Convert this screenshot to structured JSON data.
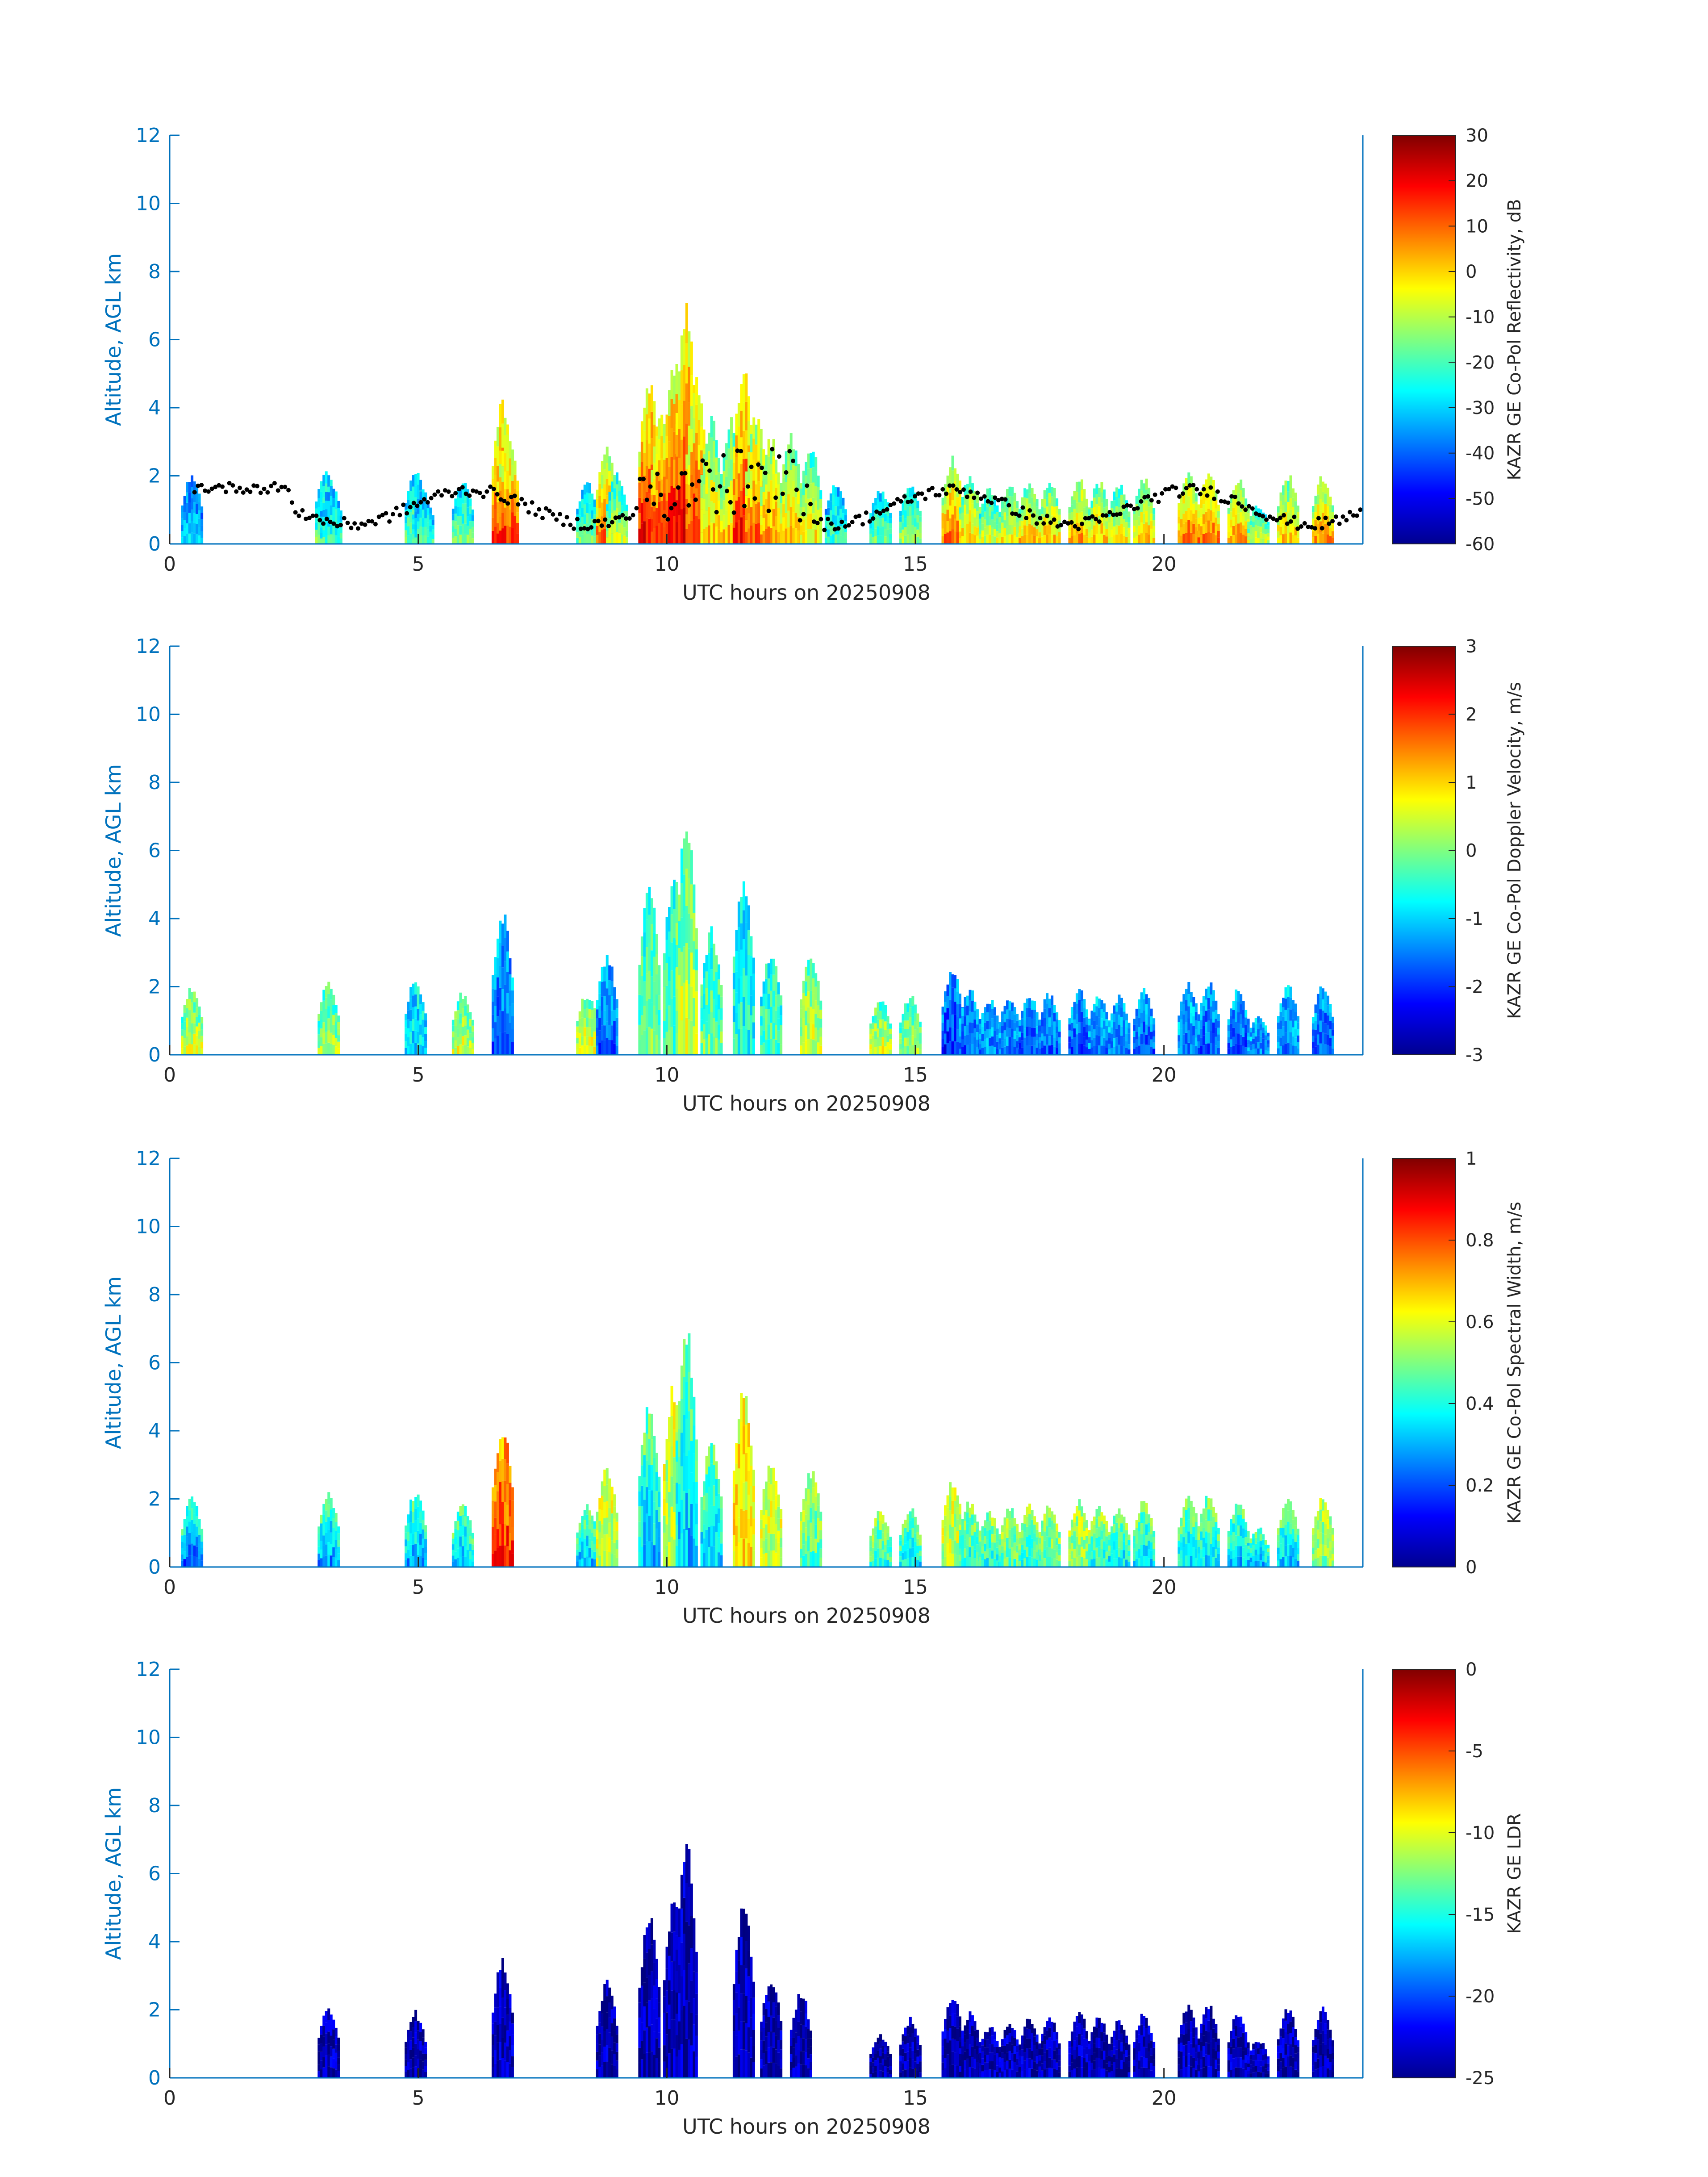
{
  "figure": {
    "date": "20250908"
  },
  "chart_data": [
    {
      "type": "heatmap",
      "title": "",
      "xlabel": "UTC hours on 20250908",
      "ylabel": "Altitude, AGL km",
      "xlim": [
        0,
        24
      ],
      "ylim": [
        0,
        12
      ],
      "xticks": [
        0,
        5,
        10,
        15,
        20
      ],
      "yticks": [
        0,
        2,
        4,
        6,
        8,
        10,
        12
      ],
      "colorbar": {
        "label": "KAZR GE Co-Pol Reflectivity, dB",
        "range": [
          -60,
          30
        ],
        "ticks": [
          30,
          20,
          10,
          0,
          -10,
          -20,
          -30,
          -40,
          -50,
          -60
        ],
        "colormap": "jet"
      },
      "bias": 0.72,
      "overlay": {
        "type": "scatter",
        "color": "#000000",
        "description_values": "cloud base height, km"
      },
      "columns": [
        {
          "t": 0.45,
          "top": 2.1,
          "v": 0.35
        },
        {
          "t": 3.15,
          "top": 2.3,
          "v": 0.5
        },
        {
          "t": 3.25,
          "top": 1.8,
          "v": 0.45
        },
        {
          "t": 4.95,
          "top": 2.3,
          "v": 0.5
        },
        {
          "t": 5.1,
          "top": 1.6,
          "v": 0.45
        },
        {
          "t": 5.9,
          "top": 1.9,
          "v": 0.5
        },
        {
          "t": 6.7,
          "top": 4.3,
          "v": 0.9
        },
        {
          "t": 6.8,
          "top": 3.5,
          "v": 0.85
        },
        {
          "t": 8.4,
          "top": 1.9,
          "v": 0.5
        },
        {
          "t": 8.8,
          "top": 3.0,
          "v": 0.8
        },
        {
          "t": 9.0,
          "top": 2.2,
          "v": 0.6
        },
        {
          "t": 9.65,
          "top": 5.0,
          "v": 0.9
        },
        {
          "t": 9.9,
          "top": 4.0,
          "v": 0.85
        },
        {
          "t": 10.15,
          "top": 5.6,
          "v": 0.9
        },
        {
          "t": 10.4,
          "top": 7.1,
          "v": 0.92
        },
        {
          "t": 10.6,
          "top": 5.0,
          "v": 0.85
        },
        {
          "t": 10.9,
          "top": 3.8,
          "v": 0.7
        },
        {
          "t": 11.3,
          "top": 3.8,
          "v": 0.7
        },
        {
          "t": 11.55,
          "top": 5.3,
          "v": 0.88
        },
        {
          "t": 11.8,
          "top": 4.0,
          "v": 0.8
        },
        {
          "t": 12.1,
          "top": 3.2,
          "v": 0.75
        },
        {
          "t": 12.5,
          "top": 3.3,
          "v": 0.7
        },
        {
          "t": 12.9,
          "top": 3.0,
          "v": 0.65
        },
        {
          "t": 13.4,
          "top": 1.9,
          "v": 0.45
        },
        {
          "t": 14.3,
          "top": 1.7,
          "v": 0.5
        },
        {
          "t": 14.9,
          "top": 1.8,
          "v": 0.55
        },
        {
          "t": 15.75,
          "top": 2.6,
          "v": 0.8
        },
        {
          "t": 16.1,
          "top": 2.0,
          "v": 0.7
        },
        {
          "t": 16.5,
          "top": 1.7,
          "v": 0.6
        },
        {
          "t": 16.9,
          "top": 1.8,
          "v": 0.65
        },
        {
          "t": 17.3,
          "top": 1.9,
          "v": 0.7
        },
        {
          "t": 17.7,
          "top": 1.9,
          "v": 0.7
        },
        {
          "t": 18.3,
          "top": 2.0,
          "v": 0.75
        },
        {
          "t": 18.7,
          "top": 1.9,
          "v": 0.7
        },
        {
          "t": 19.1,
          "top": 1.8,
          "v": 0.65
        },
        {
          "t": 19.6,
          "top": 2.0,
          "v": 0.7
        },
        {
          "t": 20.5,
          "top": 2.2,
          "v": 0.8
        },
        {
          "t": 20.9,
          "top": 2.2,
          "v": 0.8
        },
        {
          "t": 21.5,
          "top": 2.0,
          "v": 0.75
        },
        {
          "t": 21.9,
          "top": 1.2,
          "v": 0.6
        },
        {
          "t": 22.5,
          "top": 2.1,
          "v": 0.7
        },
        {
          "t": 23.2,
          "top": 2.1,
          "v": 0.75
        }
      ]
    },
    {
      "type": "heatmap",
      "title": "",
      "xlabel": "UTC hours on 20250908",
      "ylabel": "Altitude, AGL km",
      "xlim": [
        0,
        24
      ],
      "ylim": [
        0,
        12
      ],
      "xticks": [
        0,
        5,
        10,
        15,
        20
      ],
      "yticks": [
        0,
        2,
        4,
        6,
        8,
        10,
        12
      ],
      "colorbar": {
        "label": "KAZR GE Co-Pol Doppler Velocity, m/s",
        "range": [
          -3,
          3
        ],
        "ticks": [
          3,
          2,
          1,
          0,
          -1,
          -2,
          -3
        ],
        "colormap": "jet"
      },
      "bias": 0.35,
      "columns": [
        {
          "t": 0.45,
          "top": 2.1,
          "v": 0.6
        },
        {
          "t": 3.2,
          "top": 2.2,
          "v": 0.55
        },
        {
          "t": 4.95,
          "top": 2.3,
          "v": 0.35
        },
        {
          "t": 5.9,
          "top": 1.9,
          "v": 0.6
        },
        {
          "t": 6.7,
          "top": 4.3,
          "v": 0.2
        },
        {
          "t": 8.4,
          "top": 1.9,
          "v": 0.65
        },
        {
          "t": 8.8,
          "top": 3.0,
          "v": 0.2
        },
        {
          "t": 9.65,
          "top": 5.0,
          "v": 0.5
        },
        {
          "t": 10.15,
          "top": 5.6,
          "v": 0.45
        },
        {
          "t": 10.4,
          "top": 7.1,
          "v": 0.6
        },
        {
          "t": 10.9,
          "top": 3.8,
          "v": 0.5
        },
        {
          "t": 11.55,
          "top": 5.3,
          "v": 0.4
        },
        {
          "t": 12.1,
          "top": 3.2,
          "v": 0.45
        },
        {
          "t": 12.9,
          "top": 3.0,
          "v": 0.6
        },
        {
          "t": 14.3,
          "top": 1.7,
          "v": 0.6
        },
        {
          "t": 14.9,
          "top": 1.8,
          "v": 0.55
        },
        {
          "t": 15.75,
          "top": 2.6,
          "v": 0.15
        },
        {
          "t": 16.1,
          "top": 2.0,
          "v": 0.2
        },
        {
          "t": 16.5,
          "top": 1.7,
          "v": 0.25
        },
        {
          "t": 16.9,
          "top": 1.8,
          "v": 0.25
        },
        {
          "t": 17.3,
          "top": 1.9,
          "v": 0.2
        },
        {
          "t": 17.7,
          "top": 1.9,
          "v": 0.2
        },
        {
          "t": 18.3,
          "top": 2.0,
          "v": 0.2
        },
        {
          "t": 18.7,
          "top": 1.9,
          "v": 0.25
        },
        {
          "t": 19.1,
          "top": 1.8,
          "v": 0.25
        },
        {
          "t": 19.6,
          "top": 2.0,
          "v": 0.2
        },
        {
          "t": 20.5,
          "top": 2.2,
          "v": 0.25
        },
        {
          "t": 20.9,
          "top": 2.2,
          "v": 0.2
        },
        {
          "t": 21.5,
          "top": 2.0,
          "v": 0.2
        },
        {
          "t": 21.9,
          "top": 1.2,
          "v": 0.25
        },
        {
          "t": 22.5,
          "top": 2.1,
          "v": 0.25
        },
        {
          "t": 23.2,
          "top": 2.1,
          "v": 0.2
        }
      ]
    },
    {
      "type": "heatmap",
      "title": "",
      "xlabel": "UTC hours on 20250908",
      "ylabel": "Altitude, AGL km",
      "xlim": [
        0,
        24
      ],
      "ylim": [
        0,
        12
      ],
      "xticks": [
        0,
        5,
        10,
        15,
        20
      ],
      "yticks": [
        0,
        2,
        4,
        6,
        8,
        10,
        12
      ],
      "colorbar": {
        "label": "KAZR GE Co-Pol Spectral Width, m/s",
        "range": [
          0,
          1
        ],
        "ticks": [
          1,
          0.8,
          0.6,
          0.4,
          0.2,
          0
        ],
        "colormap": "jet"
      },
      "bias": 0.6,
      "columns": [
        {
          "t": 0.45,
          "top": 2.1,
          "v": 0.2
        },
        {
          "t": 3.2,
          "top": 2.2,
          "v": 0.25
        },
        {
          "t": 4.95,
          "top": 2.3,
          "v": 0.25
        },
        {
          "t": 5.9,
          "top": 1.9,
          "v": 0.3
        },
        {
          "t": 6.7,
          "top": 4.3,
          "v": 0.85
        },
        {
          "t": 8.4,
          "top": 1.9,
          "v": 0.3
        },
        {
          "t": 8.8,
          "top": 3.0,
          "v": 0.55
        },
        {
          "t": 9.65,
          "top": 5.0,
          "v": 0.3
        },
        {
          "t": 10.15,
          "top": 5.6,
          "v": 0.55
        },
        {
          "t": 10.4,
          "top": 7.1,
          "v": 0.3
        },
        {
          "t": 10.9,
          "top": 3.8,
          "v": 0.3
        },
        {
          "t": 11.55,
          "top": 5.3,
          "v": 0.65
        },
        {
          "t": 12.1,
          "top": 3.2,
          "v": 0.55
        },
        {
          "t": 12.9,
          "top": 3.0,
          "v": 0.45
        },
        {
          "t": 14.3,
          "top": 1.7,
          "v": 0.4
        },
        {
          "t": 14.9,
          "top": 1.8,
          "v": 0.35
        },
        {
          "t": 15.75,
          "top": 2.6,
          "v": 0.55
        },
        {
          "t": 16.1,
          "top": 2.0,
          "v": 0.4
        },
        {
          "t": 16.5,
          "top": 1.7,
          "v": 0.4
        },
        {
          "t": 16.9,
          "top": 1.8,
          "v": 0.45
        },
        {
          "t": 17.3,
          "top": 1.9,
          "v": 0.4
        },
        {
          "t": 17.7,
          "top": 1.9,
          "v": 0.45
        },
        {
          "t": 18.3,
          "top": 2.0,
          "v": 0.5
        },
        {
          "t": 18.7,
          "top": 1.9,
          "v": 0.4
        },
        {
          "t": 19.1,
          "top": 1.8,
          "v": 0.35
        },
        {
          "t": 19.6,
          "top": 2.0,
          "v": 0.35
        },
        {
          "t": 20.5,
          "top": 2.2,
          "v": 0.35
        },
        {
          "t": 20.9,
          "top": 2.2,
          "v": 0.35
        },
        {
          "t": 21.5,
          "top": 2.0,
          "v": 0.3
        },
        {
          "t": 21.9,
          "top": 1.2,
          "v": 0.3
        },
        {
          "t": 22.5,
          "top": 2.1,
          "v": 0.3
        },
        {
          "t": 23.2,
          "top": 2.1,
          "v": 0.5
        }
      ]
    },
    {
      "type": "heatmap",
      "title": "",
      "xlabel": "UTC hours on 20250908",
      "ylabel": "Altitude, AGL km",
      "xlim": [
        0,
        24
      ],
      "ylim": [
        0,
        12
      ],
      "xticks": [
        0,
        5,
        10,
        15,
        20
      ],
      "yticks": [
        0,
        2,
        4,
        6,
        8,
        10,
        12
      ],
      "colorbar": {
        "label": "KAZR GE LDR",
        "range": [
          -25,
          0
        ],
        "ticks": [
          0,
          -5,
          -10,
          -15,
          -20,
          -25
        ],
        "colormap": "jet"
      },
      "bias": 0,
      "columns": [
        {
          "t": 3.2,
          "top": 2.2,
          "v": 0.05
        },
        {
          "t": 4.95,
          "top": 2.0,
          "v": 0.04
        },
        {
          "t": 6.7,
          "top": 3.6,
          "v": 0.05
        },
        {
          "t": 8.8,
          "top": 2.9,
          "v": 0.05
        },
        {
          "t": 9.65,
          "top": 4.9,
          "v": 0.05
        },
        {
          "t": 10.15,
          "top": 5.5,
          "v": 0.05
        },
        {
          "t": 10.4,
          "top": 7.0,
          "v": 0.05
        },
        {
          "t": 11.55,
          "top": 5.2,
          "v": 0.05
        },
        {
          "t": 12.1,
          "top": 3.1,
          "v": 0.05
        },
        {
          "t": 12.7,
          "top": 2.6,
          "v": 0.05
        },
        {
          "t": 14.3,
          "top": 1.3,
          "v": 0.05
        },
        {
          "t": 14.9,
          "top": 1.8,
          "v": 0.05
        },
        {
          "t": 15.75,
          "top": 2.5,
          "v": 0.05
        },
        {
          "t": 16.1,
          "top": 2.0,
          "v": 0.05
        },
        {
          "t": 16.5,
          "top": 1.6,
          "v": 0.05
        },
        {
          "t": 16.9,
          "top": 1.7,
          "v": 0.05
        },
        {
          "t": 17.3,
          "top": 1.8,
          "v": 0.05
        },
        {
          "t": 17.7,
          "top": 1.9,
          "v": 0.05
        },
        {
          "t": 18.3,
          "top": 2.0,
          "v": 0.05
        },
        {
          "t": 18.7,
          "top": 1.9,
          "v": 0.05
        },
        {
          "t": 19.1,
          "top": 1.8,
          "v": 0.05
        },
        {
          "t": 19.6,
          "top": 2.0,
          "v": 0.05
        },
        {
          "t": 20.5,
          "top": 2.2,
          "v": 0.05
        },
        {
          "t": 20.9,
          "top": 2.2,
          "v": 0.05
        },
        {
          "t": 21.5,
          "top": 2.0,
          "v": 0.05
        },
        {
          "t": 21.9,
          "top": 1.2,
          "v": 0.05
        },
        {
          "t": 22.5,
          "top": 2.1,
          "v": 0.05
        },
        {
          "t": 23.2,
          "top": 2.1,
          "v": 0.05
        }
      ]
    }
  ]
}
